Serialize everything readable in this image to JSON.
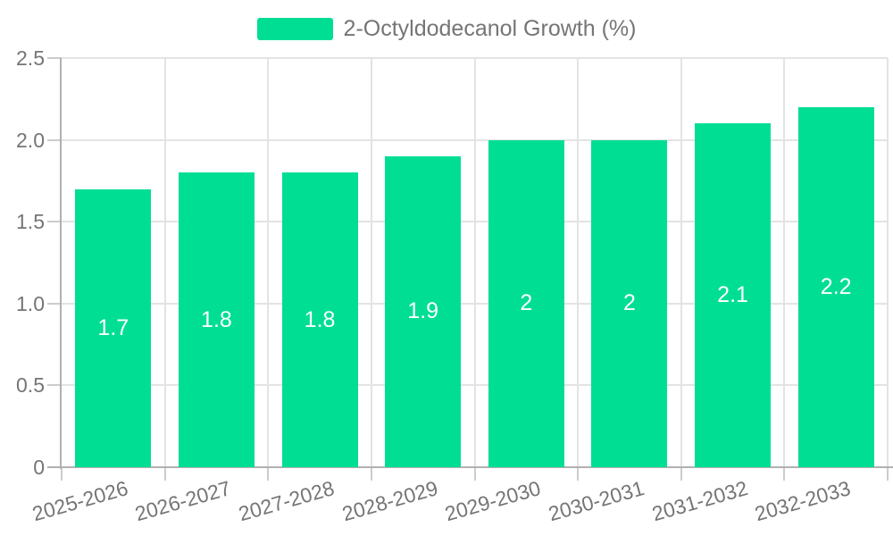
{
  "colors": {
    "bar": "#00de94",
    "grid": "#e3e3e3",
    "axis": "#b1b1b1",
    "tick": "#cccccc",
    "text": "#757575",
    "bar_label": "#ffffff"
  },
  "chart_data": {
    "type": "bar",
    "title": "",
    "legend_entries": [
      "2-Octyldodecanol Growth (%)"
    ],
    "legend_position": "top",
    "categories": [
      "2025-2026",
      "2026-2027",
      "2027-2028",
      "2028-2029",
      "2029-2030",
      "2030-2031",
      "2031-2032",
      "2032-2033"
    ],
    "series": [
      {
        "name": "2-Octyldodecanol Growth (%)",
        "values": [
          1.7,
          1.8,
          1.8,
          1.9,
          2,
          2,
          2.1,
          2.2
        ],
        "value_labels": [
          "1.7",
          "1.8",
          "1.8",
          "1.9",
          "2",
          "2",
          "2.1",
          "2.2"
        ]
      }
    ],
    "xlabel": "",
    "ylabel": "",
    "ylim": [
      0,
      2.5
    ],
    "yticks": [
      0,
      0.5,
      1.0,
      1.5,
      2.0,
      2.5
    ],
    "ytick_labels": [
      "0",
      "0.5",
      "1.0",
      "1.5",
      "2.0",
      "2.5"
    ],
    "grid": true,
    "x_label_rotation_deg": -16
  }
}
